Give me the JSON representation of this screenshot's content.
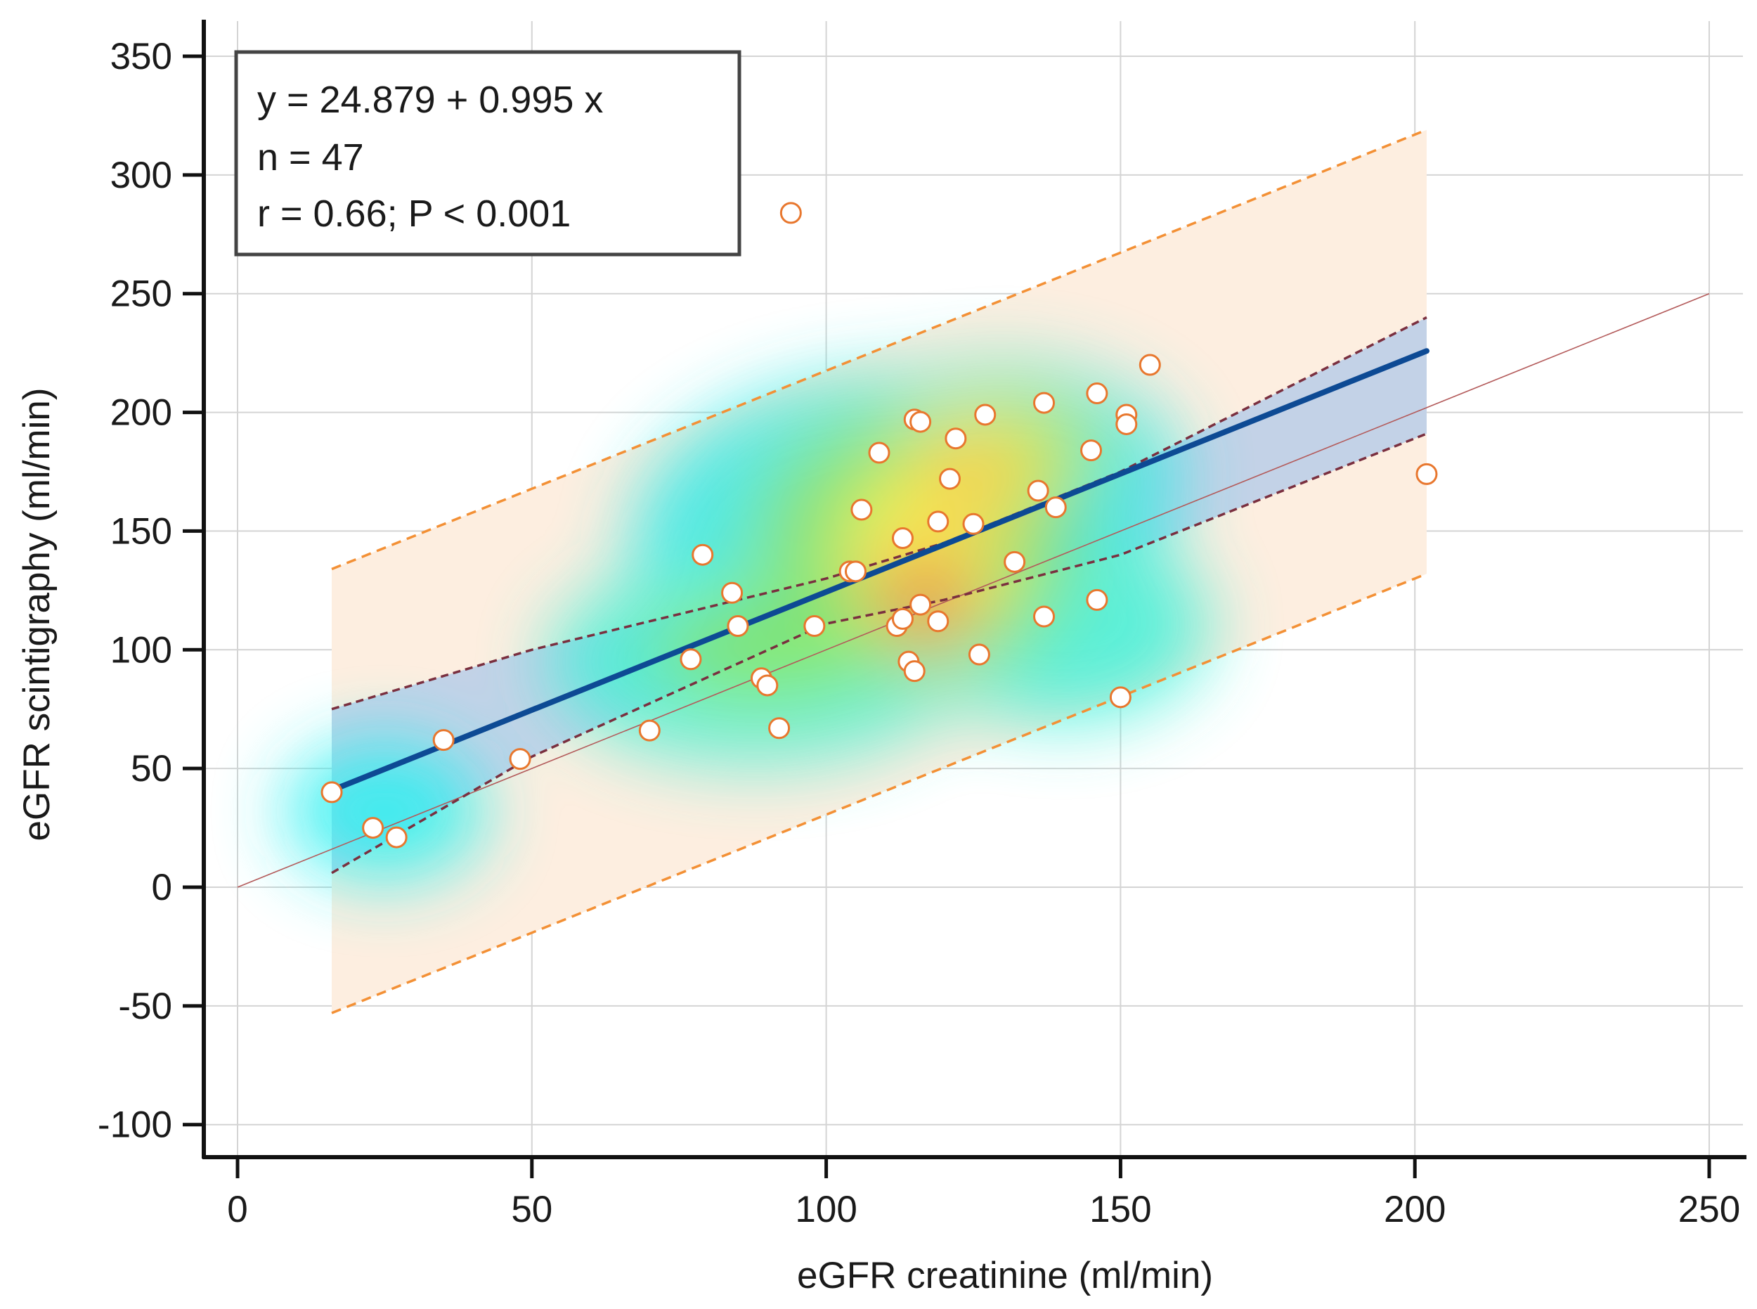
{
  "chart_data": {
    "type": "scatter",
    "title": "",
    "xlabel": "eGFR creatinine (ml/min)",
    "ylabel": "eGFR scintigraphy (ml/min)",
    "xlim": [
      0,
      250
    ],
    "ylim": [
      -100,
      350
    ],
    "xticks": [
      0,
      50,
      100,
      150,
      200,
      250
    ],
    "yticks": [
      -100,
      -50,
      0,
      50,
      100,
      150,
      200,
      250,
      300,
      350
    ],
    "grid": true,
    "stats": {
      "equation": "y = 24.879 + 0.995 x",
      "n": "n = 47",
      "correlation": "r = 0.66; P < 0.001"
    },
    "regression": {
      "intercept": 24.879,
      "slope": 0.995,
      "x_range": [
        16,
        202
      ]
    },
    "confidence_band": {
      "x": [
        16,
        50,
        100,
        120,
        150,
        202
      ],
      "upper": [
        75,
        100,
        130,
        145,
        175,
        240
      ],
      "lower": [
        6,
        55,
        111,
        121,
        140,
        191
      ]
    },
    "prediction_band": {
      "x": [
        16,
        202
      ],
      "upper": [
        134,
        319
      ],
      "lower": [
        -53,
        132
      ]
    },
    "identity_line": {
      "x": [
        0,
        250
      ],
      "y": [
        0,
        250
      ]
    },
    "points": {
      "x": [
        16,
        23,
        27,
        35,
        48,
        70,
        77,
        79,
        84,
        85,
        89,
        90,
        92,
        94,
        98,
        104,
        105,
        106,
        109,
        112,
        113,
        113,
        114,
        115,
        115,
        116,
        116,
        119,
        119,
        121,
        122,
        125,
        126,
        127,
        132,
        136,
        137,
        137,
        139,
        145,
        146,
        146,
        150,
        151,
        151,
        155,
        202
      ],
      "y": [
        40,
        25,
        21,
        62,
        54,
        66,
        96,
        140,
        124,
        110,
        88,
        85,
        67,
        284,
        110,
        133,
        133,
        159,
        183,
        110,
        147,
        113,
        95,
        91,
        197,
        196,
        119,
        112,
        154,
        172,
        189,
        153,
        98,
        199,
        137,
        167,
        204,
        114,
        160,
        184,
        208,
        121,
        80,
        199,
        195,
        220,
        174
      ]
    },
    "colors": {
      "point_fill": "#ffffff",
      "point_stroke": "#e8772e",
      "regression_line": "#0d4a94",
      "confidence_fill": "#b9cde8",
      "confidence_line": "#7a2f3f",
      "prediction_fill": "#fdeee0",
      "prediction_line": "#f39035",
      "identity_line": "#b35a5a",
      "grid": "#d4d4d4",
      "axis": "#111111"
    }
  }
}
